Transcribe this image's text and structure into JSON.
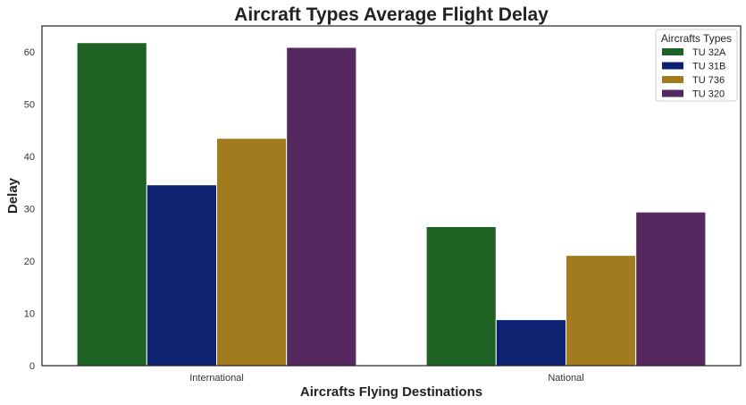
{
  "chart_data": {
    "type": "bar",
    "title": "Aircraft Types Average Flight Delay",
    "xlabel": "Aircrafts Flying Destinations",
    "ylabel": "Delay",
    "categories": [
      "International",
      "National"
    ],
    "series": [
      {
        "name": "TU 32A",
        "color": "#1e6323",
        "values": [
          61.8,
          26.6
        ]
      },
      {
        "name": "TU 31B",
        "color": "#0d2270",
        "values": [
          34.6,
          8.8
        ]
      },
      {
        "name": "TU 736",
        "color": "#a27b1f",
        "values": [
          43.5,
          21.1
        ]
      },
      {
        "name": "TU 320",
        "color": "#55285f",
        "values": [
          60.9,
          29.4
        ]
      }
    ],
    "ylim": [
      0,
      65
    ],
    "yticks": [
      0,
      10,
      20,
      30,
      40,
      50,
      60
    ],
    "legend": {
      "title": "Aircrafts Types",
      "position": "top-right"
    },
    "grid": false
  }
}
